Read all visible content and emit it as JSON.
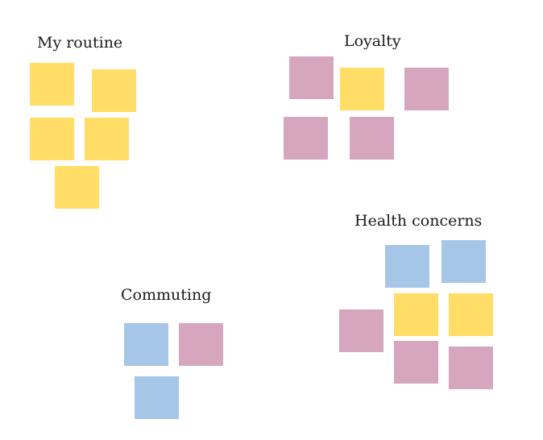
{
  "colors": {
    "yellow": "#FFDD66",
    "pink": "#D6A6BE",
    "blue": "#A6C6E8"
  },
  "clusters": [
    {
      "label": "My routine",
      "notes": [
        "yellow",
        "yellow",
        "yellow",
        "yellow",
        "yellow"
      ]
    },
    {
      "label": "Loyalty",
      "notes": [
        "pink",
        "yellow",
        "pink",
        "pink",
        "pink"
      ]
    },
    {
      "label": "Health concerns",
      "notes": [
        "blue",
        "blue",
        "pink",
        "yellow",
        "yellow",
        "pink",
        "pink"
      ]
    },
    {
      "label": "Commuting",
      "notes": [
        "blue",
        "pink",
        "blue"
      ]
    }
  ]
}
